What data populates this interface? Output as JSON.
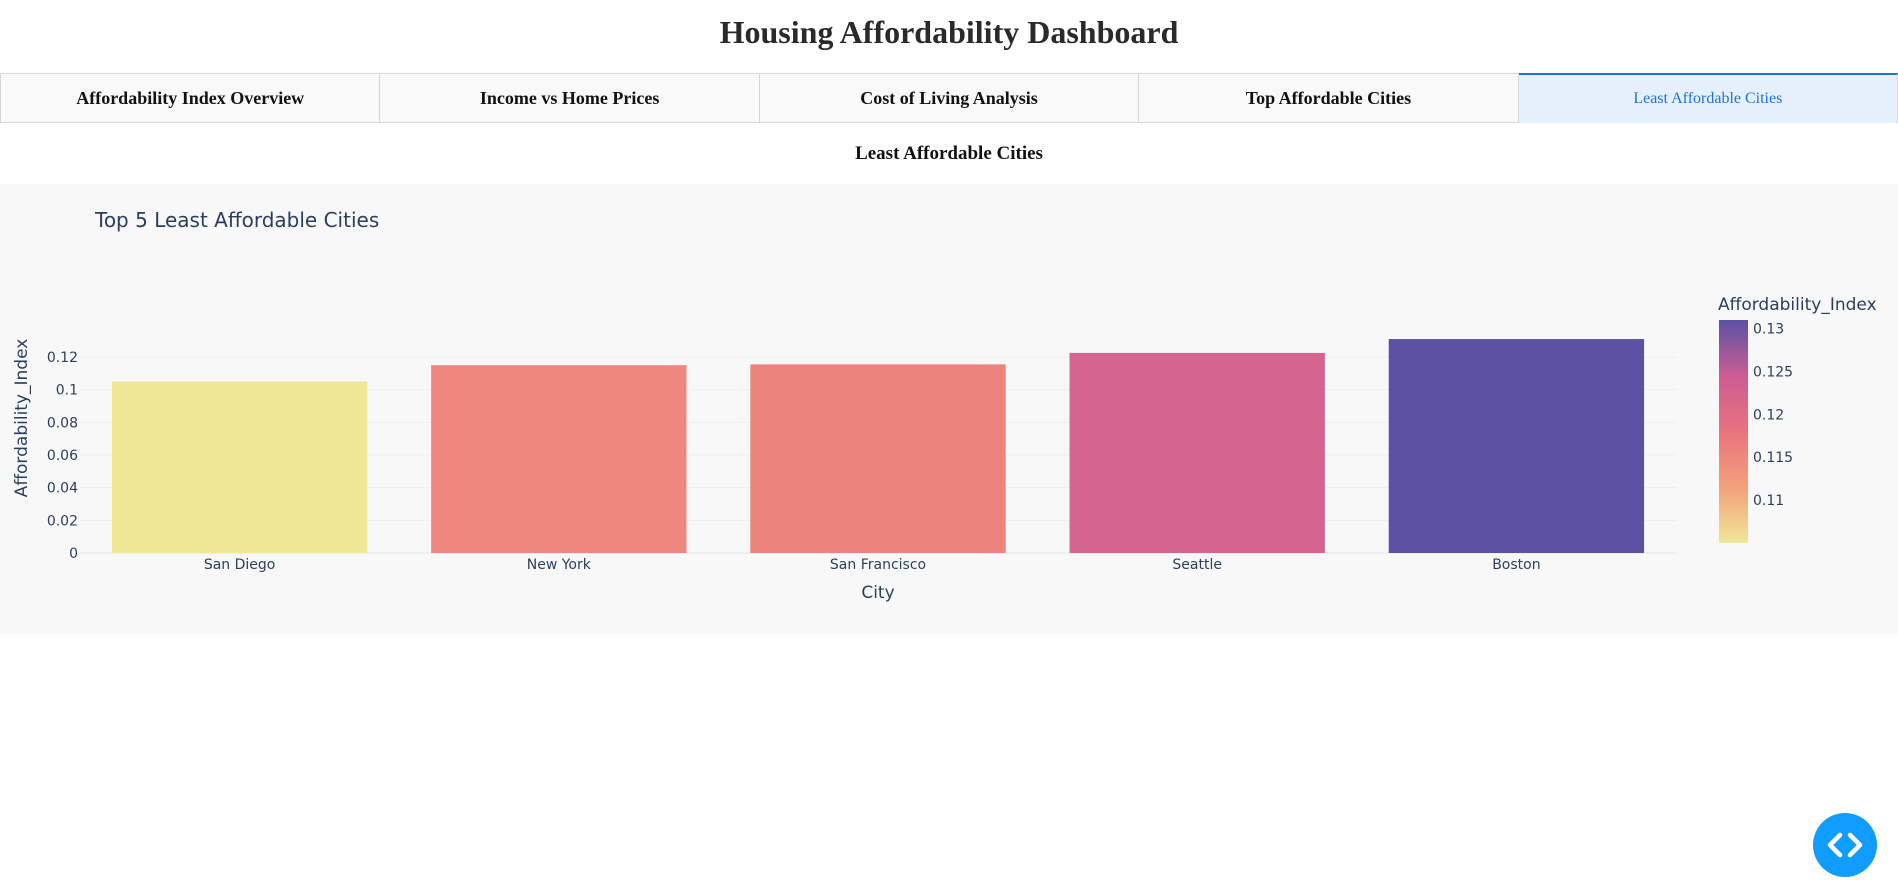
{
  "header": {
    "title": "Housing Affordability Dashboard"
  },
  "tabs": [
    {
      "label": "Affordability Index Overview",
      "selected": false
    },
    {
      "label": "Income vs Home Prices",
      "selected": false
    },
    {
      "label": "Cost of Living Analysis",
      "selected": false
    },
    {
      "label": "Top Affordable Cities",
      "selected": false
    },
    {
      "label": "Least Affordable Cities",
      "selected": true
    }
  ],
  "section": {
    "heading": "Least Affordable Cities"
  },
  "chart_data": {
    "type": "bar",
    "title": "Top 5 Least Affordable Cities",
    "xlabel": "City",
    "ylabel": "Affordability_Index",
    "categories": [
      "San Diego",
      "New York",
      "San Francisco",
      "Seattle",
      "Boston"
    ],
    "values": [
      0.105,
      0.115,
      0.1155,
      0.1225,
      0.131
    ],
    "ylim": [
      0,
      0.131
    ],
    "yticks": [
      "0",
      "0.02",
      "0.04",
      "0.06",
      "0.08",
      "0.1",
      "0.12"
    ],
    "ytick_values": [
      0,
      0.02,
      0.04,
      0.06,
      0.08,
      0.1,
      0.12
    ],
    "grid": true,
    "colorscale": "Plasma-like sunset",
    "colorbar": {
      "title": "Affordability_Index",
      "range": [
        0.105,
        0.131
      ],
      "ticks": [
        "0.11",
        "0.115",
        "0.12",
        "0.125",
        "0.13"
      ],
      "tick_values": [
        0.11,
        0.115,
        0.12,
        0.125,
        0.13
      ],
      "colors": [
        "#f0e797",
        "#f3a07c",
        "#e9737e",
        "#cc5d95",
        "#5b52a3"
      ]
    }
  },
  "fab": {
    "icon": "code-icon"
  }
}
